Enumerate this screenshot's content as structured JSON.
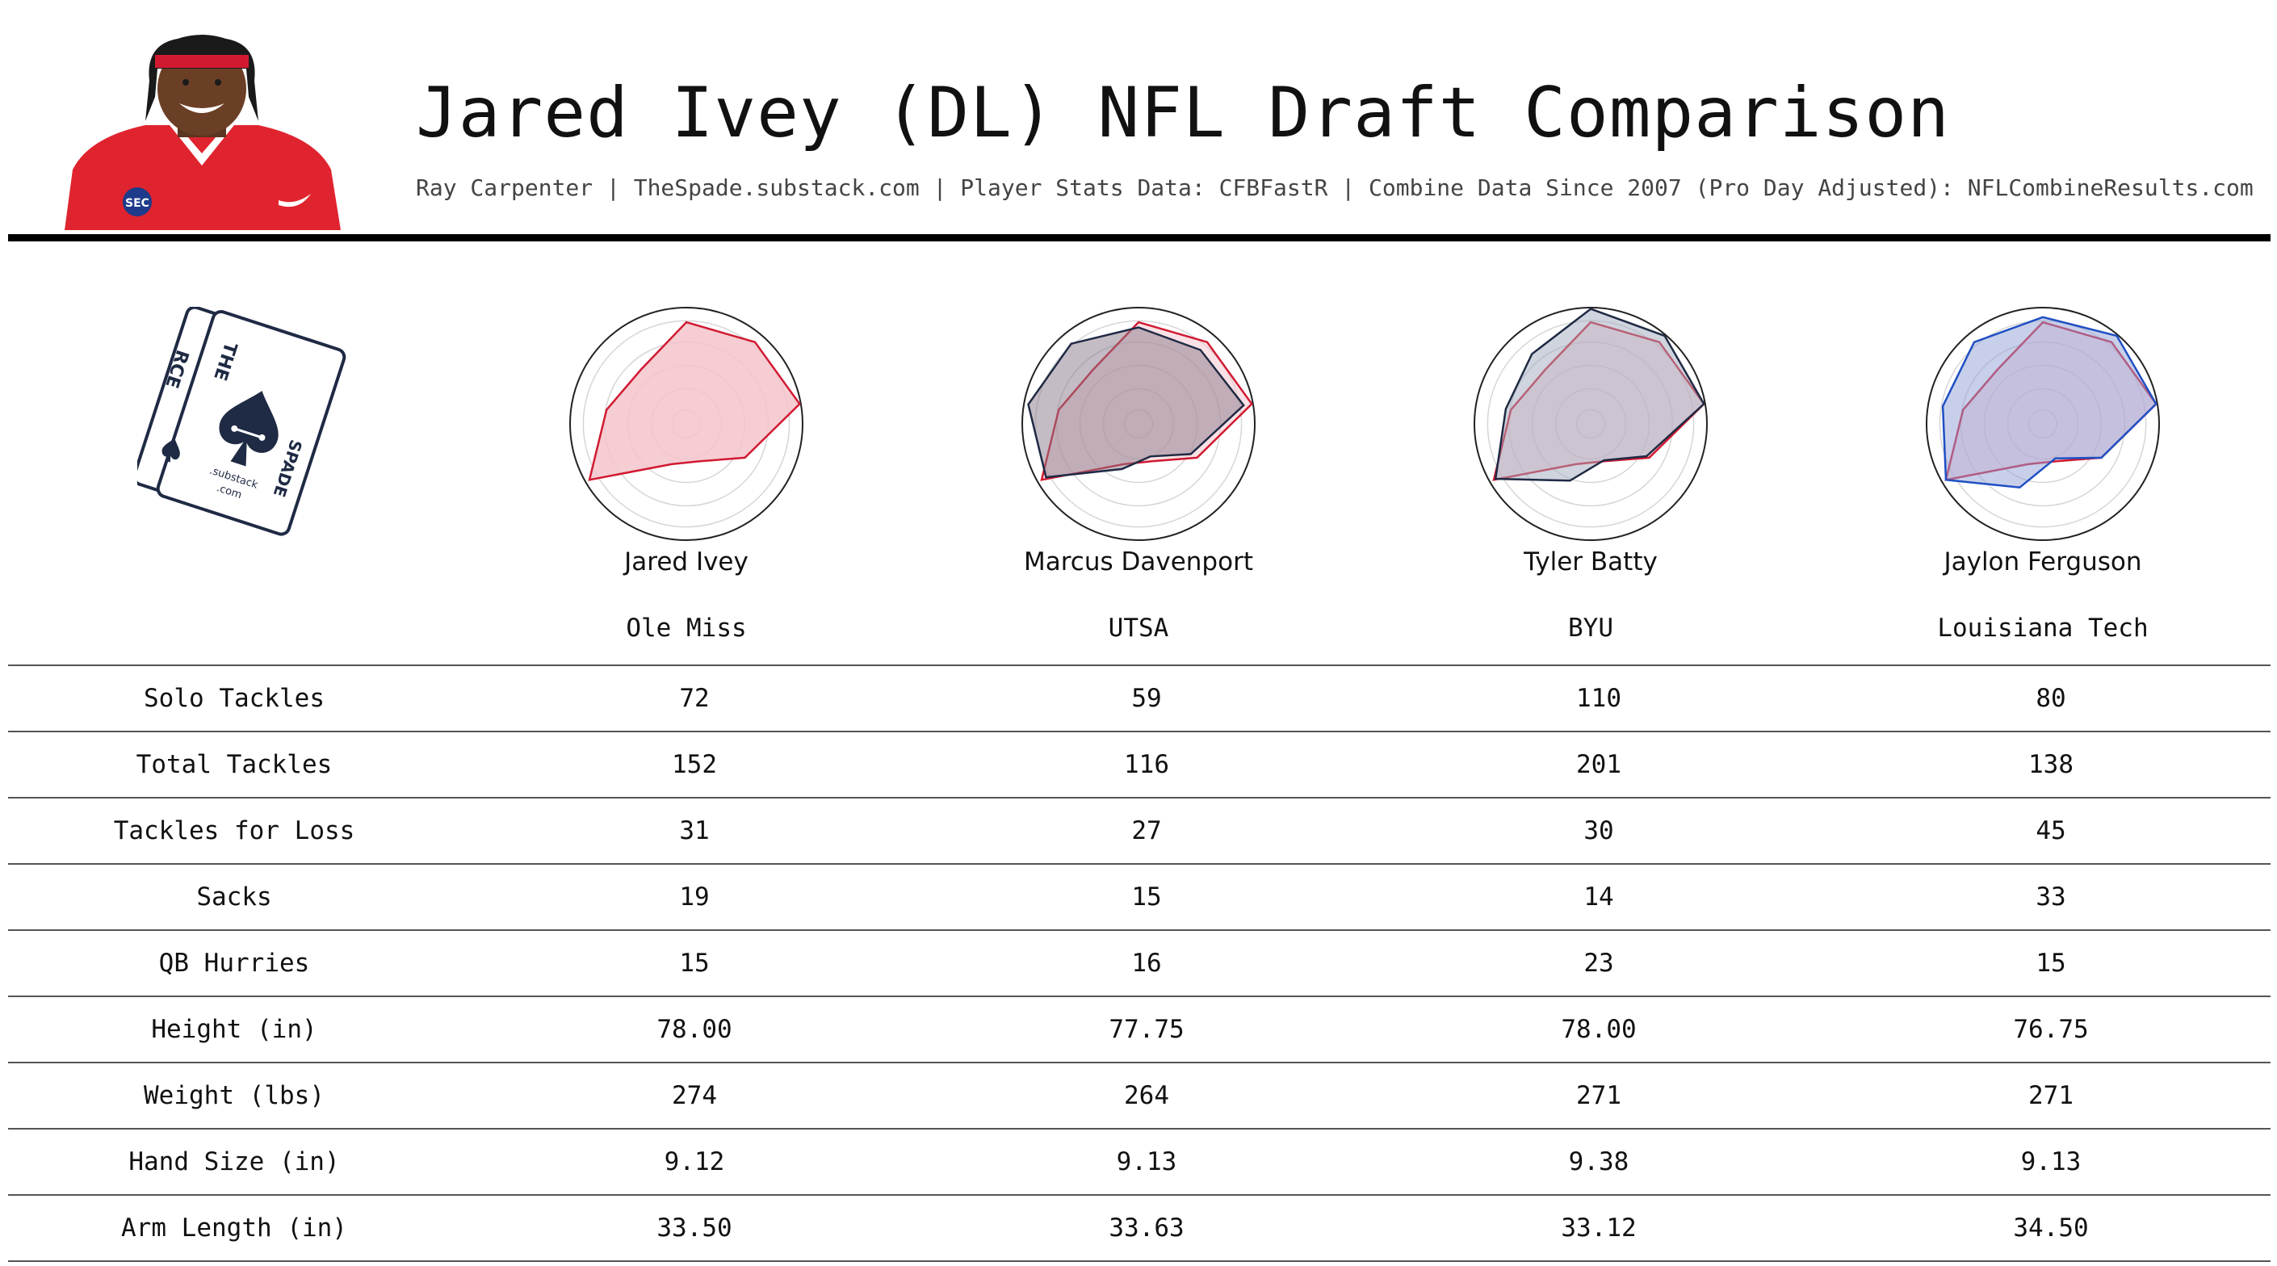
{
  "header": {
    "title": "Jared Ivey (DL) NFL Draft Comparison",
    "subtitle": "Ray Carpenter | TheSpade.substack.com | Player Stats Data: CFBFastR | Combine Data Since 2007 (Pro Day Adjusted): NFLCombineResults.com",
    "photo_badge": "SEC"
  },
  "logo": {
    "letters_left": "RCE",
    "letters_right_top": "THE",
    "letters_right_side": "SPADE",
    "small_text_1": ".substack",
    "small_text_2": ".com"
  },
  "colors": {
    "primary": "#d11a32",
    "primary_fill": "#f3c4cb",
    "navy": "#1f2a44",
    "blue": "#1f4fc4"
  },
  "chart_data": {
    "type": "radar",
    "axes": [
      "Solo Tackles",
      "Total Tackles",
      "Tackles for Loss",
      "Sacks",
      "QB Hurries",
      "Height (in)",
      "Weight (lbs)",
      "Hand Size (in)",
      "Arm Length (in)"
    ],
    "players": [
      {
        "name": "Jared Ivey",
        "team": "Ole Miss",
        "values": [
          72,
          152,
          31,
          19,
          15,
          "78.00",
          274,
          "9.12",
          "33.50"
        ],
        "radar": [
          0.85,
          0.9,
          0.98,
          0.52,
          0.25,
          0.28,
          0.95,
          0.65,
          0.55
        ]
      },
      {
        "name": "Marcus Davenport",
        "team": "UTSA",
        "values": [
          59,
          116,
          27,
          15,
          16,
          "77.75",
          264,
          "9.13",
          "33.63"
        ],
        "radar": [
          0.85,
          0.88,
          0.95,
          0.5,
          0.22,
          0.32,
          0.93,
          0.88,
          0.8
        ],
        "comp_radar": [
          0.8,
          0.8,
          0.9,
          0.45,
          0.2,
          0.33,
          0.9,
          0.95,
          0.88
        ]
      },
      {
        "name": "Tyler Batty",
        "team": "BYU",
        "values": [
          110,
          201,
          30,
          14,
          23,
          "78.00",
          271,
          "9.38",
          "33.12"
        ],
        "radar": [
          0.85,
          0.9,
          0.98,
          0.52,
          0.25,
          0.28,
          0.95,
          0.65,
          0.55
        ],
        "comp_radar": [
          0.98,
          0.98,
          0.98,
          0.49,
          0.24,
          0.45,
          0.93,
          0.7,
          0.75
        ]
      },
      {
        "name": "Jaylon Ferguson",
        "team": "Louisiana Tech",
        "values": [
          80,
          138,
          45,
          33,
          15,
          "76.75",
          271,
          "9.13",
          "34.50"
        ],
        "radar": [
          0.9,
          0.95,
          0.98,
          0.52,
          0.25,
          0.28,
          0.9,
          0.8,
          0.75
        ],
        "comp_radar": [
          0.9,
          0.98,
          0.98,
          0.52,
          0.22,
          0.52,
          0.95,
          0.85,
          0.9
        ]
      }
    ]
  }
}
